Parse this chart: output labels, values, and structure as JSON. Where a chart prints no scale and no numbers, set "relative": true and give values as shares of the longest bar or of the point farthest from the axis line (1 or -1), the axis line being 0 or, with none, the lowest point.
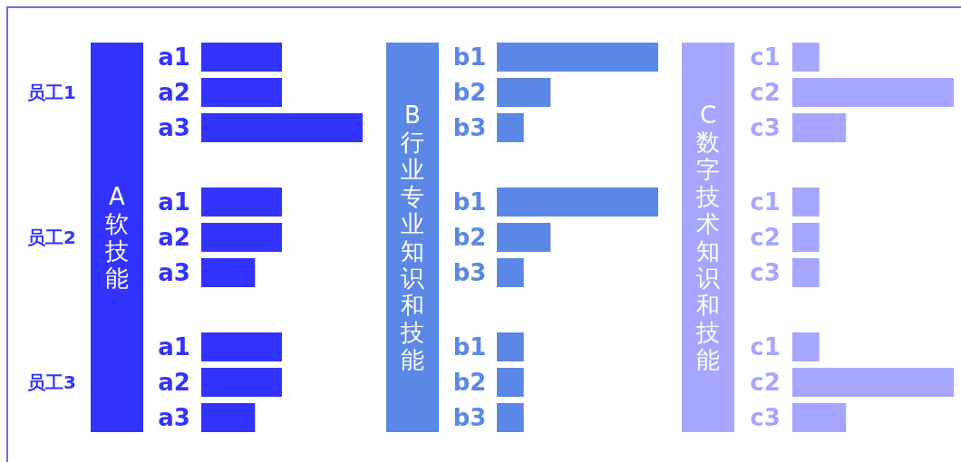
{
  "chart_data": [
    {
      "type": "bar",
      "orientation": "horizontal",
      "relative": true,
      "title": "A 软技能",
      "categories": [
        "a1",
        "a2",
        "a3",
        "a1",
        "a2",
        "a3",
        "a1",
        "a2",
        "a3"
      ],
      "annotations": [
        "员工1",
        "员工2",
        "员工3"
      ],
      "series": [
        {
          "color": "#3333ff",
          "values": [
            0.5,
            0.5,
            1,
            0.5,
            0.5,
            0.333,
            0.5,
            0.5,
            0.333
          ]
        }
      ]
    },
    {
      "type": "bar",
      "orientation": "horizontal",
      "relative": true,
      "title": "B 行业专业知识和技能",
      "categories": [
        "b1",
        "b2",
        "b3",
        "b1",
        "b2",
        "b3",
        "b1",
        "b2",
        "b3"
      ],
      "series": [
        {
          "color": "#5b87e6",
          "values": [
            1,
            0.333,
            0.167,
            1,
            0.333,
            0.167,
            0.167,
            0.167,
            0.167
          ]
        }
      ]
    },
    {
      "type": "bar",
      "orientation": "horizontal",
      "relative": true,
      "title": "C 数字技术知识和技能",
      "categories": [
        "c1",
        "c2",
        "c3",
        "c1",
        "c2",
        "c3",
        "c1",
        "c2",
        "c3"
      ],
      "series": [
        {
          "color": "#a6a6ff",
          "values": [
            0.167,
            1,
            0.333,
            0.167,
            0.167,
            0.167,
            0.167,
            1,
            0.333
          ]
        }
      ]
    }
  ]
}
